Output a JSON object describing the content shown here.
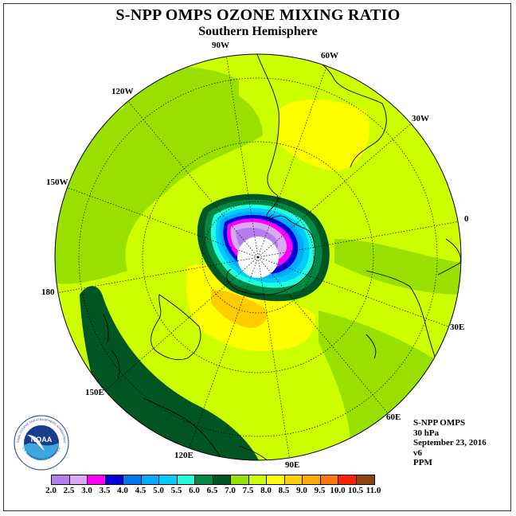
{
  "header": {
    "title": "S-NPP OMPS OZONE MIXING RATIO",
    "subtitle": "Southern Hemisphere"
  },
  "map": {
    "projection": "south polar stereographic",
    "longitude_labels": [
      "90W",
      "60W",
      "30W",
      "0",
      "30E",
      "60E",
      "90E",
      "120E",
      "150E",
      "180",
      "150W",
      "120W"
    ],
    "colors": {
      "land_outline": "#000000",
      "graticule": "#000000",
      "polar_void": "#ffffff"
    }
  },
  "info": {
    "instrument": "S-NPP OMPS",
    "level": "30 hPa",
    "date": "September 23, 2016",
    "version": "v6",
    "units": "PPM"
  },
  "logo": {
    "text": "NOAA",
    "ring_text": "NATIONAL OCEANIC AND ATMOSPHERIC ADMINISTRATION",
    "bottom_text": "U.S. DEPARTMENT OF COMMERCE"
  },
  "legend": {
    "ticks": [
      "2.0",
      "2.5",
      "3.0",
      "3.5",
      "4.0",
      "4.5",
      "5.0",
      "5.5",
      "6.0",
      "6.5",
      "7.0",
      "7.5",
      "8.0",
      "8.5",
      "9.0",
      "9.5",
      "10.0",
      "10.5",
      "11.0"
    ],
    "colors": [
      "#b57cf0",
      "#d9a9f3",
      "#ff00ff",
      "#0000dd",
      "#0077ee",
      "#00aaff",
      "#00ccff",
      "#22ffdd",
      "#008844",
      "#005522",
      "#99e000",
      "#ccff00",
      "#ffff00",
      "#ffcc00",
      "#ffaa00",
      "#ff7700",
      "#ff2200",
      "#8b4513"
    ]
  }
}
